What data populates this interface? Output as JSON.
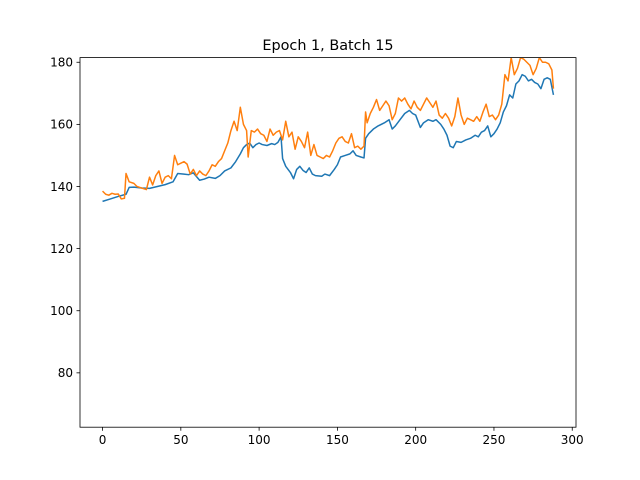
{
  "chart_data": {
    "type": "line",
    "title": "Epoch 1, Batch 15",
    "xlabel": "",
    "ylabel": "",
    "xlim": [
      -14.4,
      302.4
    ],
    "ylim": [
      62.5,
      181.5
    ],
    "xticks": [
      0,
      50,
      100,
      150,
      200,
      250,
      300
    ],
    "yticks": [
      80,
      100,
      120,
      140,
      160,
      180
    ],
    "grid": false,
    "legend": "none",
    "series": [
      {
        "color": "#1f77b4",
        "points": [
          [
            0,
            135.2
          ],
          [
            5,
            136.0
          ],
          [
            10,
            136.8
          ],
          [
            15,
            137.5
          ],
          [
            17,
            139.7
          ],
          [
            20,
            139.8
          ],
          [
            25,
            139.5
          ],
          [
            30,
            139.4
          ],
          [
            35,
            140.0
          ],
          [
            40,
            140.6
          ],
          [
            45,
            141.5
          ],
          [
            48,
            144.2
          ],
          [
            52,
            144.0
          ],
          [
            55,
            143.8
          ],
          [
            58,
            144.4
          ],
          [
            62,
            142.0
          ],
          [
            65,
            142.4
          ],
          [
            68,
            143.0
          ],
          [
            72,
            142.6
          ],
          [
            75,
            143.5
          ],
          [
            78,
            145.0
          ],
          [
            82,
            146.0
          ],
          [
            85,
            148.0
          ],
          [
            88,
            150.5
          ],
          [
            90,
            152.5
          ],
          [
            92,
            153.5
          ],
          [
            94,
            154.0
          ],
          [
            96,
            152.5
          ],
          [
            98,
            153.5
          ],
          [
            100,
            154.0
          ],
          [
            102,
            153.5
          ],
          [
            105,
            153.2
          ],
          [
            108,
            153.8
          ],
          [
            110,
            153.5
          ],
          [
            112,
            154.2
          ],
          [
            114,
            156.0
          ],
          [
            115,
            149.0
          ],
          [
            117,
            146.5
          ],
          [
            120,
            144.5
          ],
          [
            122,
            142.5
          ],
          [
            124,
            145.5
          ],
          [
            126,
            146.5
          ],
          [
            128,
            145.2
          ],
          [
            130,
            144.5
          ],
          [
            132,
            146.0
          ],
          [
            134,
            144.0
          ],
          [
            136,
            143.5
          ],
          [
            140,
            143.3
          ],
          [
            142,
            144.0
          ],
          [
            145,
            143.5
          ],
          [
            148,
            145.5
          ],
          [
            150,
            147.0
          ],
          [
            152,
            149.5
          ],
          [
            155,
            150.0
          ],
          [
            158,
            150.5
          ],
          [
            160,
            151.5
          ],
          [
            162,
            150.0
          ],
          [
            165,
            149.5
          ],
          [
            167,
            149.2
          ],
          [
            168,
            155.5
          ],
          [
            170,
            157.0
          ],
          [
            173,
            158.5
          ],
          [
            176,
            159.5
          ],
          [
            180,
            160.5
          ],
          [
            183,
            161.5
          ],
          [
            185,
            158.5
          ],
          [
            187,
            159.5
          ],
          [
            190,
            161.5
          ],
          [
            193,
            163.5
          ],
          [
            196,
            164.5
          ],
          [
            198,
            163.5
          ],
          [
            200,
            163.0
          ],
          [
            203,
            159.0
          ],
          [
            205,
            160.5
          ],
          [
            208,
            161.5
          ],
          [
            211,
            161.0
          ],
          [
            213,
            161.5
          ],
          [
            216,
            160.0
          ],
          [
            218,
            158.5
          ],
          [
            220,
            156.5
          ],
          [
            222,
            153.0
          ],
          [
            224,
            152.5
          ],
          [
            226,
            154.5
          ],
          [
            229,
            154.2
          ],
          [
            232,
            155.0
          ],
          [
            235,
            155.5
          ],
          [
            238,
            156.5
          ],
          [
            240,
            156.0
          ],
          [
            242,
            157.5
          ],
          [
            244,
            158.0
          ],
          [
            246,
            159.5
          ],
          [
            248,
            156.0
          ],
          [
            250,
            157.0
          ],
          [
            252,
            158.5
          ],
          [
            254,
            160.5
          ],
          [
            256,
            164.0
          ],
          [
            258,
            166.0
          ],
          [
            260,
            169.5
          ],
          [
            262,
            168.5
          ],
          [
            264,
            173.0
          ],
          [
            266,
            174.0
          ],
          [
            268,
            176.0
          ],
          [
            270,
            175.5
          ],
          [
            272,
            174.0
          ],
          [
            274,
            174.5
          ],
          [
            276,
            173.5
          ],
          [
            278,
            173.0
          ],
          [
            280,
            171.5
          ],
          [
            282,
            174.5
          ],
          [
            284,
            175.0
          ],
          [
            286,
            174.5
          ],
          [
            288,
            169.5
          ]
        ]
      },
      {
        "color": "#ff7f0e",
        "points": [
          [
            0,
            138.5
          ],
          [
            2,
            137.5
          ],
          [
            4,
            137.2
          ],
          [
            6,
            137.8
          ],
          [
            8,
            137.5
          ],
          [
            10,
            137.6
          ],
          [
            12,
            136.0
          ],
          [
            14,
            136.2
          ],
          [
            15,
            144.2
          ],
          [
            17,
            141.5
          ],
          [
            20,
            141.0
          ],
          [
            22,
            140.0
          ],
          [
            25,
            139.5
          ],
          [
            28,
            139.0
          ],
          [
            30,
            143.0
          ],
          [
            32,
            140.5
          ],
          [
            34,
            143.5
          ],
          [
            36,
            145.0
          ],
          [
            38,
            141.0
          ],
          [
            40,
            143.0
          ],
          [
            42,
            143.5
          ],
          [
            44,
            142.5
          ],
          [
            46,
            150.0
          ],
          [
            48,
            147.0
          ],
          [
            50,
            147.5
          ],
          [
            52,
            148.0
          ],
          [
            54,
            147.2
          ],
          [
            56,
            144.0
          ],
          [
            58,
            145.5
          ],
          [
            60,
            143.5
          ],
          [
            62,
            145.0
          ],
          [
            64,
            144.0
          ],
          [
            66,
            143.5
          ],
          [
            68,
            145.0
          ],
          [
            70,
            147.0
          ],
          [
            72,
            146.5
          ],
          [
            74,
            148.0
          ],
          [
            76,
            149.0
          ],
          [
            78,
            151.5
          ],
          [
            80,
            154.0
          ],
          [
            82,
            158.0
          ],
          [
            84,
            161.0
          ],
          [
            86,
            158.0
          ],
          [
            88,
            165.5
          ],
          [
            90,
            160.0
          ],
          [
            92,
            158.0
          ],
          [
            93,
            149.5
          ],
          [
            95,
            158.0
          ],
          [
            97,
            157.5
          ],
          [
            99,
            158.5
          ],
          [
            101,
            157.0
          ],
          [
            103,
            156.5
          ],
          [
            105,
            154.5
          ],
          [
            107,
            158.5
          ],
          [
            109,
            156.5
          ],
          [
            111,
            157.5
          ],
          [
            113,
            158.0
          ],
          [
            115,
            155.0
          ],
          [
            117,
            161.0
          ],
          [
            119,
            156.0
          ],
          [
            121,
            157.5
          ],
          [
            123,
            152.0
          ],
          [
            125,
            156.0
          ],
          [
            127,
            154.5
          ],
          [
            129,
            152.5
          ],
          [
            131,
            157.5
          ],
          [
            133,
            150.0
          ],
          [
            135,
            153.5
          ],
          [
            137,
            150.0
          ],
          [
            139,
            149.5
          ],
          [
            141,
            149.0
          ],
          [
            143,
            150.0
          ],
          [
            145,
            149.5
          ],
          [
            147,
            151.5
          ],
          [
            149,
            154.0
          ],
          [
            151,
            155.5
          ],
          [
            153,
            156.0
          ],
          [
            155,
            154.5
          ],
          [
            157,
            154.0
          ],
          [
            159,
            157.0
          ],
          [
            161,
            152.5
          ],
          [
            163,
            153.0
          ],
          [
            165,
            152.0
          ],
          [
            167,
            153.0
          ],
          [
            168,
            164.0
          ],
          [
            169,
            160.5
          ],
          [
            171,
            163.5
          ],
          [
            173,
            165.5
          ],
          [
            175,
            168.0
          ],
          [
            177,
            164.5
          ],
          [
            179,
            166.0
          ],
          [
            181,
            167.5
          ],
          [
            183,
            166.0
          ],
          [
            185,
            161.5
          ],
          [
            187,
            163.5
          ],
          [
            189,
            168.5
          ],
          [
            191,
            167.5
          ],
          [
            193,
            168.5
          ],
          [
            195,
            166.5
          ],
          [
            197,
            165.0
          ],
          [
            199,
            167.5
          ],
          [
            201,
            165.5
          ],
          [
            203,
            164.5
          ],
          [
            205,
            166.5
          ],
          [
            207,
            168.5
          ],
          [
            209,
            167.0
          ],
          [
            211,
            165.5
          ],
          [
            213,
            167.5
          ],
          [
            215,
            163.0
          ],
          [
            217,
            162.0
          ],
          [
            219,
            163.5
          ],
          [
            221,
            162.0
          ],
          [
            223,
            159.5
          ],
          [
            225,
            162.5
          ],
          [
            227,
            168.5
          ],
          [
            229,
            163.0
          ],
          [
            231,
            160.0
          ],
          [
            233,
            162.0
          ],
          [
            235,
            161.5
          ],
          [
            237,
            161.0
          ],
          [
            239,
            162.5
          ],
          [
            241,
            161.0
          ],
          [
            243,
            164.0
          ],
          [
            245,
            166.5
          ],
          [
            247,
            162.5
          ],
          [
            249,
            163.0
          ],
          [
            251,
            161.5
          ],
          [
            253,
            163.0
          ],
          [
            255,
            166.5
          ],
          [
            257,
            176.0
          ],
          [
            259,
            174.0
          ],
          [
            261,
            181.5
          ],
          [
            263,
            176.0
          ],
          [
            265,
            178.0
          ],
          [
            267,
            181.5
          ],
          [
            269,
            181.0
          ],
          [
            271,
            180.0
          ],
          [
            273,
            179.0
          ],
          [
            275,
            176.0
          ],
          [
            277,
            178.0
          ],
          [
            279,
            181.5
          ],
          [
            281,
            180.0
          ],
          [
            283,
            180.0
          ],
          [
            285,
            179.5
          ],
          [
            287,
            177.5
          ],
          [
            288,
            171.5
          ]
        ]
      }
    ]
  }
}
